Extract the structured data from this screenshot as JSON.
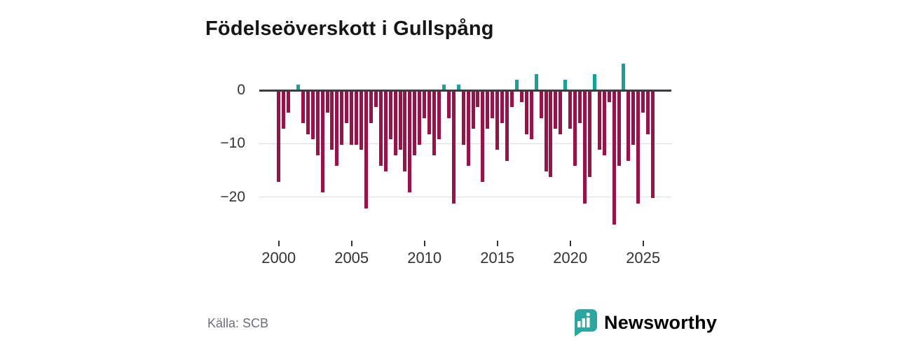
{
  "chart_data": {
    "type": "bar",
    "title": "Födelseöverskott i Gullspång",
    "categories": [
      "2000 T1",
      "2000 T2",
      "2000 T3",
      "2001 T1",
      "2001 T2",
      "2001 T3",
      "2002 T1",
      "2002 T2",
      "2002 T3",
      "2003 T1",
      "2003 T2",
      "2003 T3",
      "2004 T1",
      "2004 T2",
      "2004 T3",
      "2005 T1",
      "2005 T2",
      "2005 T3",
      "2006 T1",
      "2006 T2",
      "2006 T3",
      "2007 T1",
      "2007 T2",
      "2007 T3",
      "2008 T1",
      "2008 T2",
      "2008 T3",
      "2009 T1",
      "2009 T2",
      "2009 T3",
      "2010 T1",
      "2010 T2",
      "2010 T3",
      "2011 T1",
      "2011 T2",
      "2011 T3",
      "2012 T1",
      "2012 T2",
      "2012 T3",
      "2013 T1",
      "2013 T2",
      "2013 T3",
      "2014 T1",
      "2014 T2",
      "2014 T3",
      "2015 T1",
      "2015 T2",
      "2015 T3",
      "2016 T1",
      "2016 T2",
      "2016 T3",
      "2017 T1",
      "2017 T2",
      "2017 T3",
      "2018 T1",
      "2018 T2",
      "2018 T3",
      "2019 T1",
      "2019 T2",
      "2019 T3",
      "2020 T1",
      "2020 T2",
      "2020 T3",
      "2021 T1",
      "2021 T2",
      "2021 T3",
      "2022 T1",
      "2022 T2",
      "2022 T3",
      "2023 T1",
      "2023 T2",
      "2023 T3",
      "2024 T1",
      "2024 T2",
      "2024 T3",
      "2025 T1",
      "2025 T2",
      "2025 T3"
    ],
    "values": [
      -17,
      -7,
      -4,
      0,
      1,
      -6,
      -8,
      -9,
      -12,
      -19,
      -4,
      -11,
      -14,
      -10,
      -6,
      -10,
      -10,
      -11,
      -22,
      -6,
      -3,
      -14,
      -15,
      -9,
      -12,
      -11,
      -15,
      -19,
      -12,
      -10,
      -5,
      -8,
      -12,
      -9,
      1,
      -5,
      -21,
      1,
      -10,
      -14,
      -7,
      -3,
      -17,
      -7,
      -5,
      -11,
      -6,
      -13,
      -3,
      2,
      -2,
      -8,
      -9,
      3,
      -5,
      -15,
      -16,
      -7,
      -8,
      2,
      -7,
      -14,
      -6,
      -21,
      -16,
      3,
      -11,
      -12,
      -2,
      -25,
      -14,
      5,
      -13,
      -10,
      -21,
      -4,
      -8,
      -20
    ],
    "xlabel": "",
    "ylabel": "",
    "ylim": [
      -26,
      6
    ],
    "yticks": [
      0,
      -10,
      -20
    ],
    "ytick_labels": [
      "0",
      "−10",
      "−20"
    ],
    "xticks": [
      2000,
      2005,
      2010,
      2015,
      2020,
      2025
    ],
    "xtick_labels": [
      "2000",
      "2005",
      "2010",
      "2015",
      "2020",
      "2025"
    ],
    "grid": "horizontal",
    "legend": "none",
    "colors": {
      "positive": "#14a39a",
      "negative": "#9e1048",
      "zero_line": "#3b3b40",
      "gridline": "#dedede",
      "axis_text": "#333333"
    }
  },
  "source": {
    "label": "Källa: SCB"
  },
  "branding": {
    "wordmark": "Newsworthy",
    "color": "#2ba6a2",
    "icon": "newsworthy-bar-chart-speech-bubble"
  }
}
